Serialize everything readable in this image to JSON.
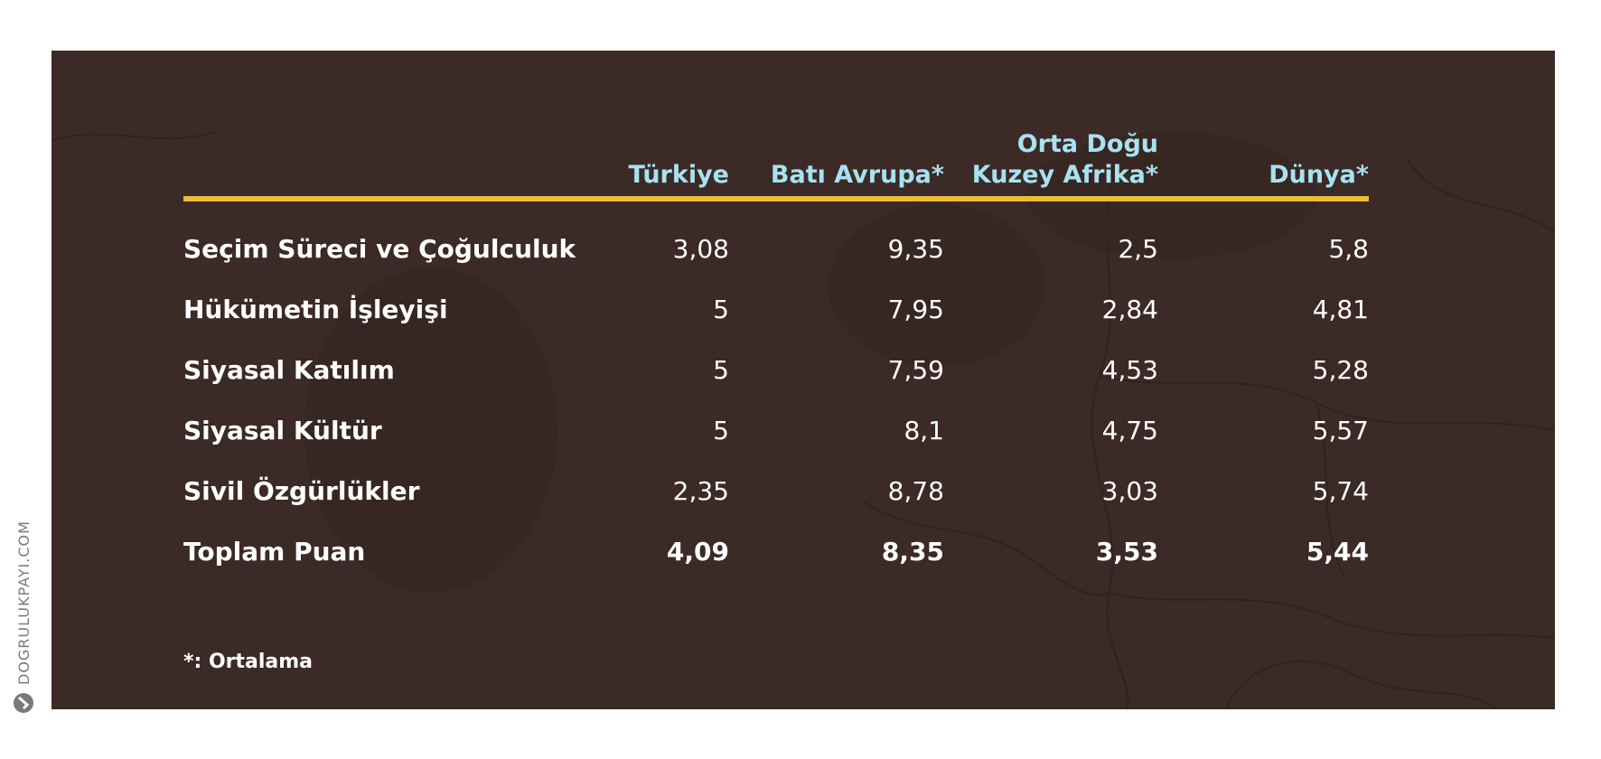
{
  "chart_data": {
    "type": "table",
    "columns": [
      "Türkiye",
      "Batı Avrupa*",
      "Orta Doğu\nKuzey Afrika*",
      "Dünya*"
    ],
    "rows": [
      {
        "label": "Seçim Süreci ve Çoğulculuk",
        "values": [
          "3,08",
          "9,35",
          "2,5",
          "5,8"
        ],
        "bold": false
      },
      {
        "label": "Hükümetin İşleyişi",
        "values": [
          "5",
          "7,95",
          "2,84",
          "4,81"
        ],
        "bold": false
      },
      {
        "label": "Siyasal Katılım",
        "values": [
          "5",
          "7,59",
          "4,53",
          "5,28"
        ],
        "bold": false
      },
      {
        "label": "Siyasal Kültür",
        "values": [
          "5",
          "8,1",
          "4,75",
          "5,57"
        ],
        "bold": false
      },
      {
        "label": "Sivil Özgürlükler",
        "values": [
          "2,35",
          "8,78",
          "3,03",
          "5,74"
        ],
        "bold": false
      },
      {
        "label": "Toplam Puan",
        "values": [
          "4,09",
          "8,35",
          "3,53",
          "5,44"
        ],
        "bold": true
      }
    ],
    "footnote": "*: Ortalama"
  },
  "watermark": {
    "text": "DOGRULUKPAYI.COM",
    "icon": "checkmark-logo-icon"
  },
  "colors": {
    "background": "#3b2a26",
    "header_text": "#a8e2f0",
    "rule": "#e8bd3a",
    "body_text": "#ffffff"
  }
}
